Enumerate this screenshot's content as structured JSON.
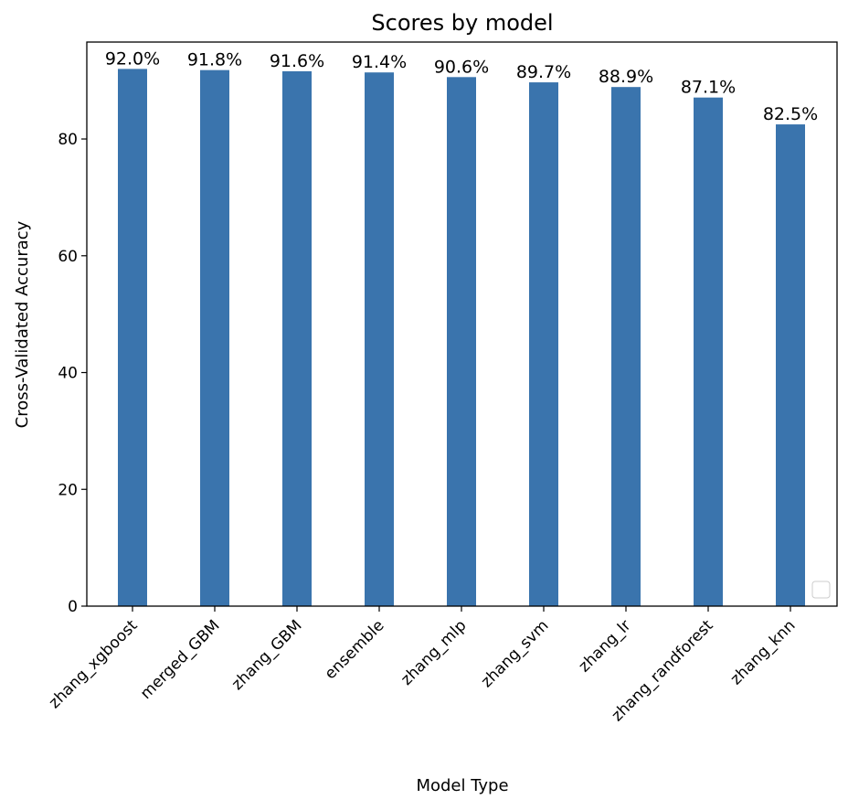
{
  "chart_data": {
    "type": "bar",
    "title": "Scores by model",
    "xlabel": "Model Type",
    "ylabel": "Cross-Validated Accuracy",
    "categories": [
      "zhang_xgboost",
      "merged_GBM",
      "zhang_GBM",
      "ensemble",
      "zhang_mlp",
      "zhang_svm",
      "zhang_lr",
      "zhang_randforest",
      "zhang_knn"
    ],
    "values": [
      92.0,
      91.8,
      91.6,
      91.4,
      90.6,
      89.7,
      88.9,
      87.1,
      82.5
    ],
    "data_labels": [
      "92.0%",
      "91.8%",
      "91.6%",
      "91.4%",
      "90.6%",
      "89.7%",
      "88.9%",
      "87.1%",
      "82.5%"
    ],
    "yticks": [
      0,
      20,
      40,
      60,
      80
    ],
    "ytick_labels": [
      "0",
      "20",
      "40",
      "60",
      "80"
    ],
    "ylim": [
      0,
      96.6
    ],
    "bar_color": "#3a74ad",
    "grid": false,
    "legend": "lower-right (empty)"
  }
}
